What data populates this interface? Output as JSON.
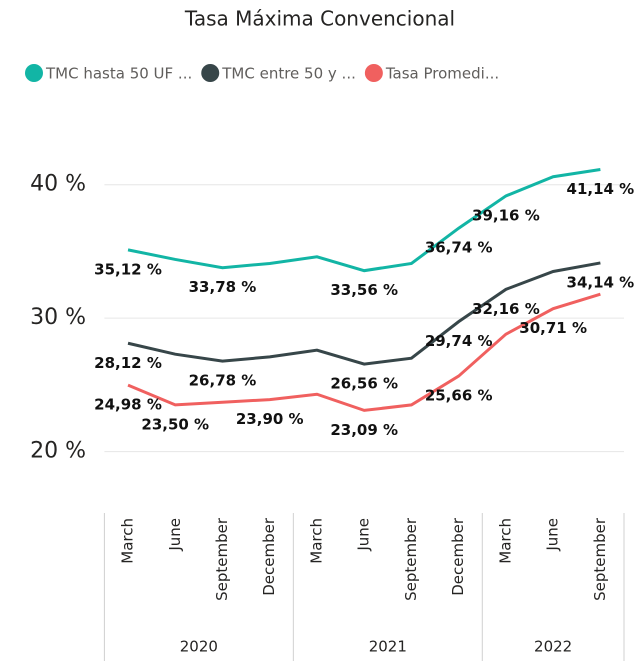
{
  "chart_data": {
    "type": "line",
    "title": "Tasa Máxima Convencional",
    "categories": [
      "March",
      "June",
      "September",
      "December",
      "March",
      "June",
      "September",
      "December",
      "March",
      "June",
      "September"
    ],
    "x_groups": [
      {
        "label": "2020",
        "count": 4
      },
      {
        "label": "2021",
        "count": 4
      },
      {
        "label": "2022",
        "count": 3
      }
    ],
    "series": [
      {
        "name": "TMC hasta 50 UF ...",
        "color": "#12b5a5",
        "values": [
          35.12,
          34.4,
          33.78,
          34.1,
          34.6,
          33.56,
          34.1,
          36.74,
          39.16,
          40.6,
          41.14
        ],
        "value_labels": [
          "35,12 %",
          null,
          "33,78 %",
          null,
          null,
          "33,56 %",
          null,
          "36,74 %",
          "39,16 %",
          null,
          "41,14 %"
        ]
      },
      {
        "name": "TMC entre 50 y ...",
        "color": "#374649",
        "values": [
          28.12,
          27.3,
          26.78,
          27.1,
          27.6,
          26.56,
          27.0,
          29.74,
          32.16,
          33.5,
          34.14
        ],
        "value_labels": [
          "28,12 %",
          null,
          "26,78 %",
          null,
          null,
          "26,56 %",
          null,
          "29,74 %",
          "32,16 %",
          null,
          "34,14 %"
        ]
      },
      {
        "name": "Tasa Promedi...",
        "color": "#f0605f",
        "values": [
          24.98,
          23.5,
          23.7,
          23.9,
          24.3,
          23.09,
          23.5,
          25.66,
          28.8,
          30.71,
          31.8
        ],
        "value_labels": [
          "24,98 %",
          "23,50 %",
          null,
          "23,90 %",
          null,
          "23,09 %",
          null,
          "25,66 %",
          null,
          "30,71 %",
          null
        ]
      }
    ],
    "ylim": [
      16,
      45
    ],
    "yticks": [
      {
        "value": 20,
        "label": "20 %"
      },
      {
        "value": 30,
        "label": "30 %"
      },
      {
        "value": 40,
        "label": "40 %"
      }
    ],
    "grid": true
  }
}
